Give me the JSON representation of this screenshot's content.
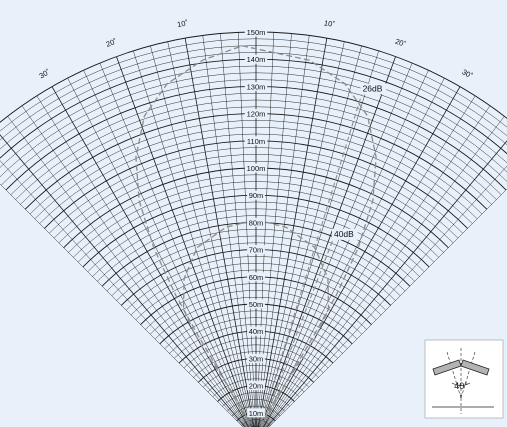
{
  "colors": {
    "background": "#e8f1fa",
    "grid": "#1a1a1a",
    "label_bg": "#e8f1fa",
    "contour": "#8c8c8c",
    "inset_bg": "#ffffff",
    "speaker_fill": "#b3b3b3"
  },
  "polar_grid": {
    "range_max_m": 150,
    "range_step_m": 10,
    "minor_step_m": 2.5,
    "angle_span_deg": 45,
    "radial_step_deg": 2.5
  },
  "range_labels": [
    "10m",
    "20m",
    "30m",
    "40m",
    "50m",
    "60m",
    "70m",
    "80m",
    "90m",
    "100m",
    "110m",
    "120m",
    "130m",
    "140m",
    "150m"
  ],
  "angle_labels": [
    {
      "deg": -30,
      "text": "30˚"
    },
    {
      "deg": -20,
      "text": "20˚"
    },
    {
      "deg": -10,
      "text": "10˚"
    },
    {
      "deg": 10,
      "text": "10˚"
    },
    {
      "deg": 20,
      "text": "20˚"
    },
    {
      "deg": 30,
      "text": "30˚"
    }
  ],
  "chart_data": {
    "type": "polar",
    "r_unit": "m",
    "r_range": [
      0,
      150
    ],
    "angle_range_deg": [
      -45,
      45
    ],
    "series": [
      {
        "name": "26dB",
        "points": [
          [
            -2,
            145
          ],
          [
            8,
            141
          ],
          [
            14,
            135
          ],
          [
            19,
            126
          ],
          [
            23,
            113
          ],
          [
            26,
            98
          ],
          [
            28,
            80
          ],
          [
            29,
            61
          ],
          [
            29,
            44
          ],
          [
            28,
            28
          ],
          [
            27,
            15
          ],
          [
            23,
            6
          ],
          [
            0,
            0
          ],
          [
            -23,
            6
          ],
          [
            -27,
            15
          ],
          [
            -28,
            28
          ],
          [
            -29,
            44
          ],
          [
            -29,
            61
          ],
          [
            -28,
            80
          ],
          [
            -26,
            98
          ],
          [
            -23,
            113
          ],
          [
            -19,
            126
          ],
          [
            -14,
            135
          ],
          [
            -8,
            141
          ],
          [
            -2,
            145
          ]
        ]
      },
      {
        "name": "40dB",
        "points": [
          [
            0,
            81
          ],
          [
            8,
            79
          ],
          [
            17,
            74
          ],
          [
            24,
            65
          ],
          [
            29,
            55
          ],
          [
            30,
            45
          ],
          [
            30,
            36
          ],
          [
            28,
            26
          ],
          [
            25,
            15
          ],
          [
            21,
            8
          ],
          [
            0,
            0
          ],
          [
            -21,
            8
          ],
          [
            -25,
            15
          ],
          [
            -28,
            26
          ],
          [
            -30,
            36
          ],
          [
            -30,
            45
          ],
          [
            -29,
            55
          ],
          [
            -24,
            65
          ],
          [
            -17,
            74
          ],
          [
            -8,
            79
          ],
          [
            0,
            81
          ]
        ]
      }
    ],
    "guide_lines": [
      {
        "from": [
          0,
          0
        ],
        "to": [
          17,
          134
        ],
        "ends_at": "26dB"
      },
      {
        "from": [
          0,
          0
        ],
        "to": [
          21,
          80
        ],
        "ends_at": "40dB"
      }
    ]
  },
  "inset": {
    "angle_label": "40°"
  }
}
